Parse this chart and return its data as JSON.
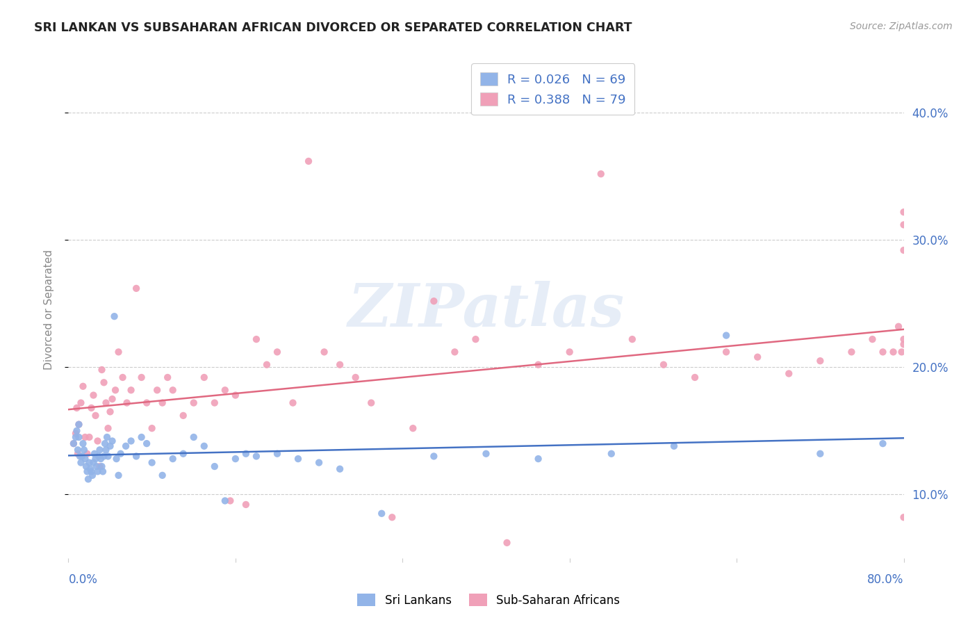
{
  "title": "SRI LANKAN VS SUBSAHARAN AFRICAN DIVORCED OR SEPARATED CORRELATION CHART",
  "source": "Source: ZipAtlas.com",
  "ylabel": "Divorced or Separated",
  "legend_sri": "R = 0.026   N = 69",
  "legend_sub": "R = 0.388   N = 79",
  "legend_bottom_sri": "Sri Lankans",
  "legend_bottom_sub": "Sub-Saharan Africans",
  "xlim": [
    0.0,
    0.8
  ],
  "ylim": [
    0.05,
    0.44
  ],
  "yticks": [
    0.1,
    0.2,
    0.3,
    0.4
  ],
  "ytick_labels": [
    "10.0%",
    "20.0%",
    "30.0%",
    "40.0%"
  ],
  "xticks": [
    0.0,
    0.16,
    0.32,
    0.48,
    0.64,
    0.8
  ],
  "color_sri": "#92b4e8",
  "color_sub": "#f0a0b8",
  "color_line_sri": "#4472c4",
  "color_line_sub": "#e06880",
  "color_axis_text": "#4472c4",
  "color_ylabel": "#888888",
  "color_grid": "#cccccc",
  "background": "#ffffff",
  "watermark": "ZIPatlas",
  "sri_x": [
    0.005,
    0.007,
    0.008,
    0.009,
    0.01,
    0.01,
    0.011,
    0.012,
    0.013,
    0.014,
    0.015,
    0.016,
    0.017,
    0.018,
    0.019,
    0.02,
    0.021,
    0.022,
    0.023,
    0.024,
    0.025,
    0.026,
    0.027,
    0.028,
    0.029,
    0.03,
    0.031,
    0.032,
    0.033,
    0.034,
    0.035,
    0.036,
    0.037,
    0.038,
    0.04,
    0.042,
    0.044,
    0.046,
    0.048,
    0.05,
    0.055,
    0.06,
    0.065,
    0.07,
    0.075,
    0.08,
    0.09,
    0.1,
    0.11,
    0.12,
    0.13,
    0.14,
    0.15,
    0.16,
    0.17,
    0.18,
    0.2,
    0.22,
    0.24,
    0.26,
    0.3,
    0.35,
    0.4,
    0.45,
    0.52,
    0.58,
    0.63,
    0.72,
    0.78
  ],
  "sri_y": [
    0.14,
    0.145,
    0.15,
    0.135,
    0.155,
    0.145,
    0.13,
    0.125,
    0.13,
    0.14,
    0.135,
    0.128,
    0.122,
    0.118,
    0.112,
    0.125,
    0.12,
    0.118,
    0.115,
    0.125,
    0.132,
    0.128,
    0.122,
    0.118,
    0.13,
    0.135,
    0.128,
    0.122,
    0.118,
    0.13,
    0.14,
    0.135,
    0.145,
    0.13,
    0.138,
    0.142,
    0.24,
    0.128,
    0.115,
    0.132,
    0.138,
    0.142,
    0.13,
    0.145,
    0.14,
    0.125,
    0.115,
    0.128,
    0.132,
    0.145,
    0.138,
    0.122,
    0.095,
    0.128,
    0.132,
    0.13,
    0.132,
    0.128,
    0.125,
    0.12,
    0.085,
    0.13,
    0.132,
    0.128,
    0.132,
    0.138,
    0.225,
    0.132,
    0.14
  ],
  "sub_x": [
    0.005,
    0.007,
    0.008,
    0.009,
    0.01,
    0.012,
    0.014,
    0.016,
    0.018,
    0.02,
    0.022,
    0.024,
    0.026,
    0.028,
    0.03,
    0.032,
    0.034,
    0.036,
    0.038,
    0.04,
    0.042,
    0.045,
    0.048,
    0.052,
    0.056,
    0.06,
    0.065,
    0.07,
    0.075,
    0.08,
    0.085,
    0.09,
    0.095,
    0.1,
    0.11,
    0.12,
    0.13,
    0.14,
    0.15,
    0.155,
    0.16,
    0.17,
    0.18,
    0.19,
    0.2,
    0.215,
    0.23,
    0.245,
    0.26,
    0.275,
    0.29,
    0.31,
    0.33,
    0.35,
    0.37,
    0.39,
    0.42,
    0.45,
    0.48,
    0.51,
    0.54,
    0.57,
    0.6,
    0.63,
    0.66,
    0.69,
    0.72,
    0.75,
    0.77,
    0.78,
    0.79,
    0.795,
    0.798,
    0.8,
    0.8,
    0.8,
    0.8,
    0.8,
    0.8
  ],
  "sub_y": [
    0.14,
    0.148,
    0.168,
    0.132,
    0.155,
    0.172,
    0.185,
    0.145,
    0.132,
    0.145,
    0.168,
    0.178,
    0.162,
    0.142,
    0.122,
    0.198,
    0.188,
    0.172,
    0.152,
    0.165,
    0.175,
    0.182,
    0.212,
    0.192,
    0.172,
    0.182,
    0.262,
    0.192,
    0.172,
    0.152,
    0.182,
    0.172,
    0.192,
    0.182,
    0.162,
    0.172,
    0.192,
    0.172,
    0.182,
    0.095,
    0.178,
    0.092,
    0.222,
    0.202,
    0.212,
    0.172,
    0.362,
    0.212,
    0.202,
    0.192,
    0.172,
    0.082,
    0.152,
    0.252,
    0.212,
    0.222,
    0.062,
    0.202,
    0.212,
    0.352,
    0.222,
    0.202,
    0.192,
    0.212,
    0.208,
    0.195,
    0.205,
    0.212,
    0.222,
    0.212,
    0.212,
    0.232,
    0.212,
    0.218,
    0.082,
    0.292,
    0.322,
    0.222,
    0.312
  ]
}
